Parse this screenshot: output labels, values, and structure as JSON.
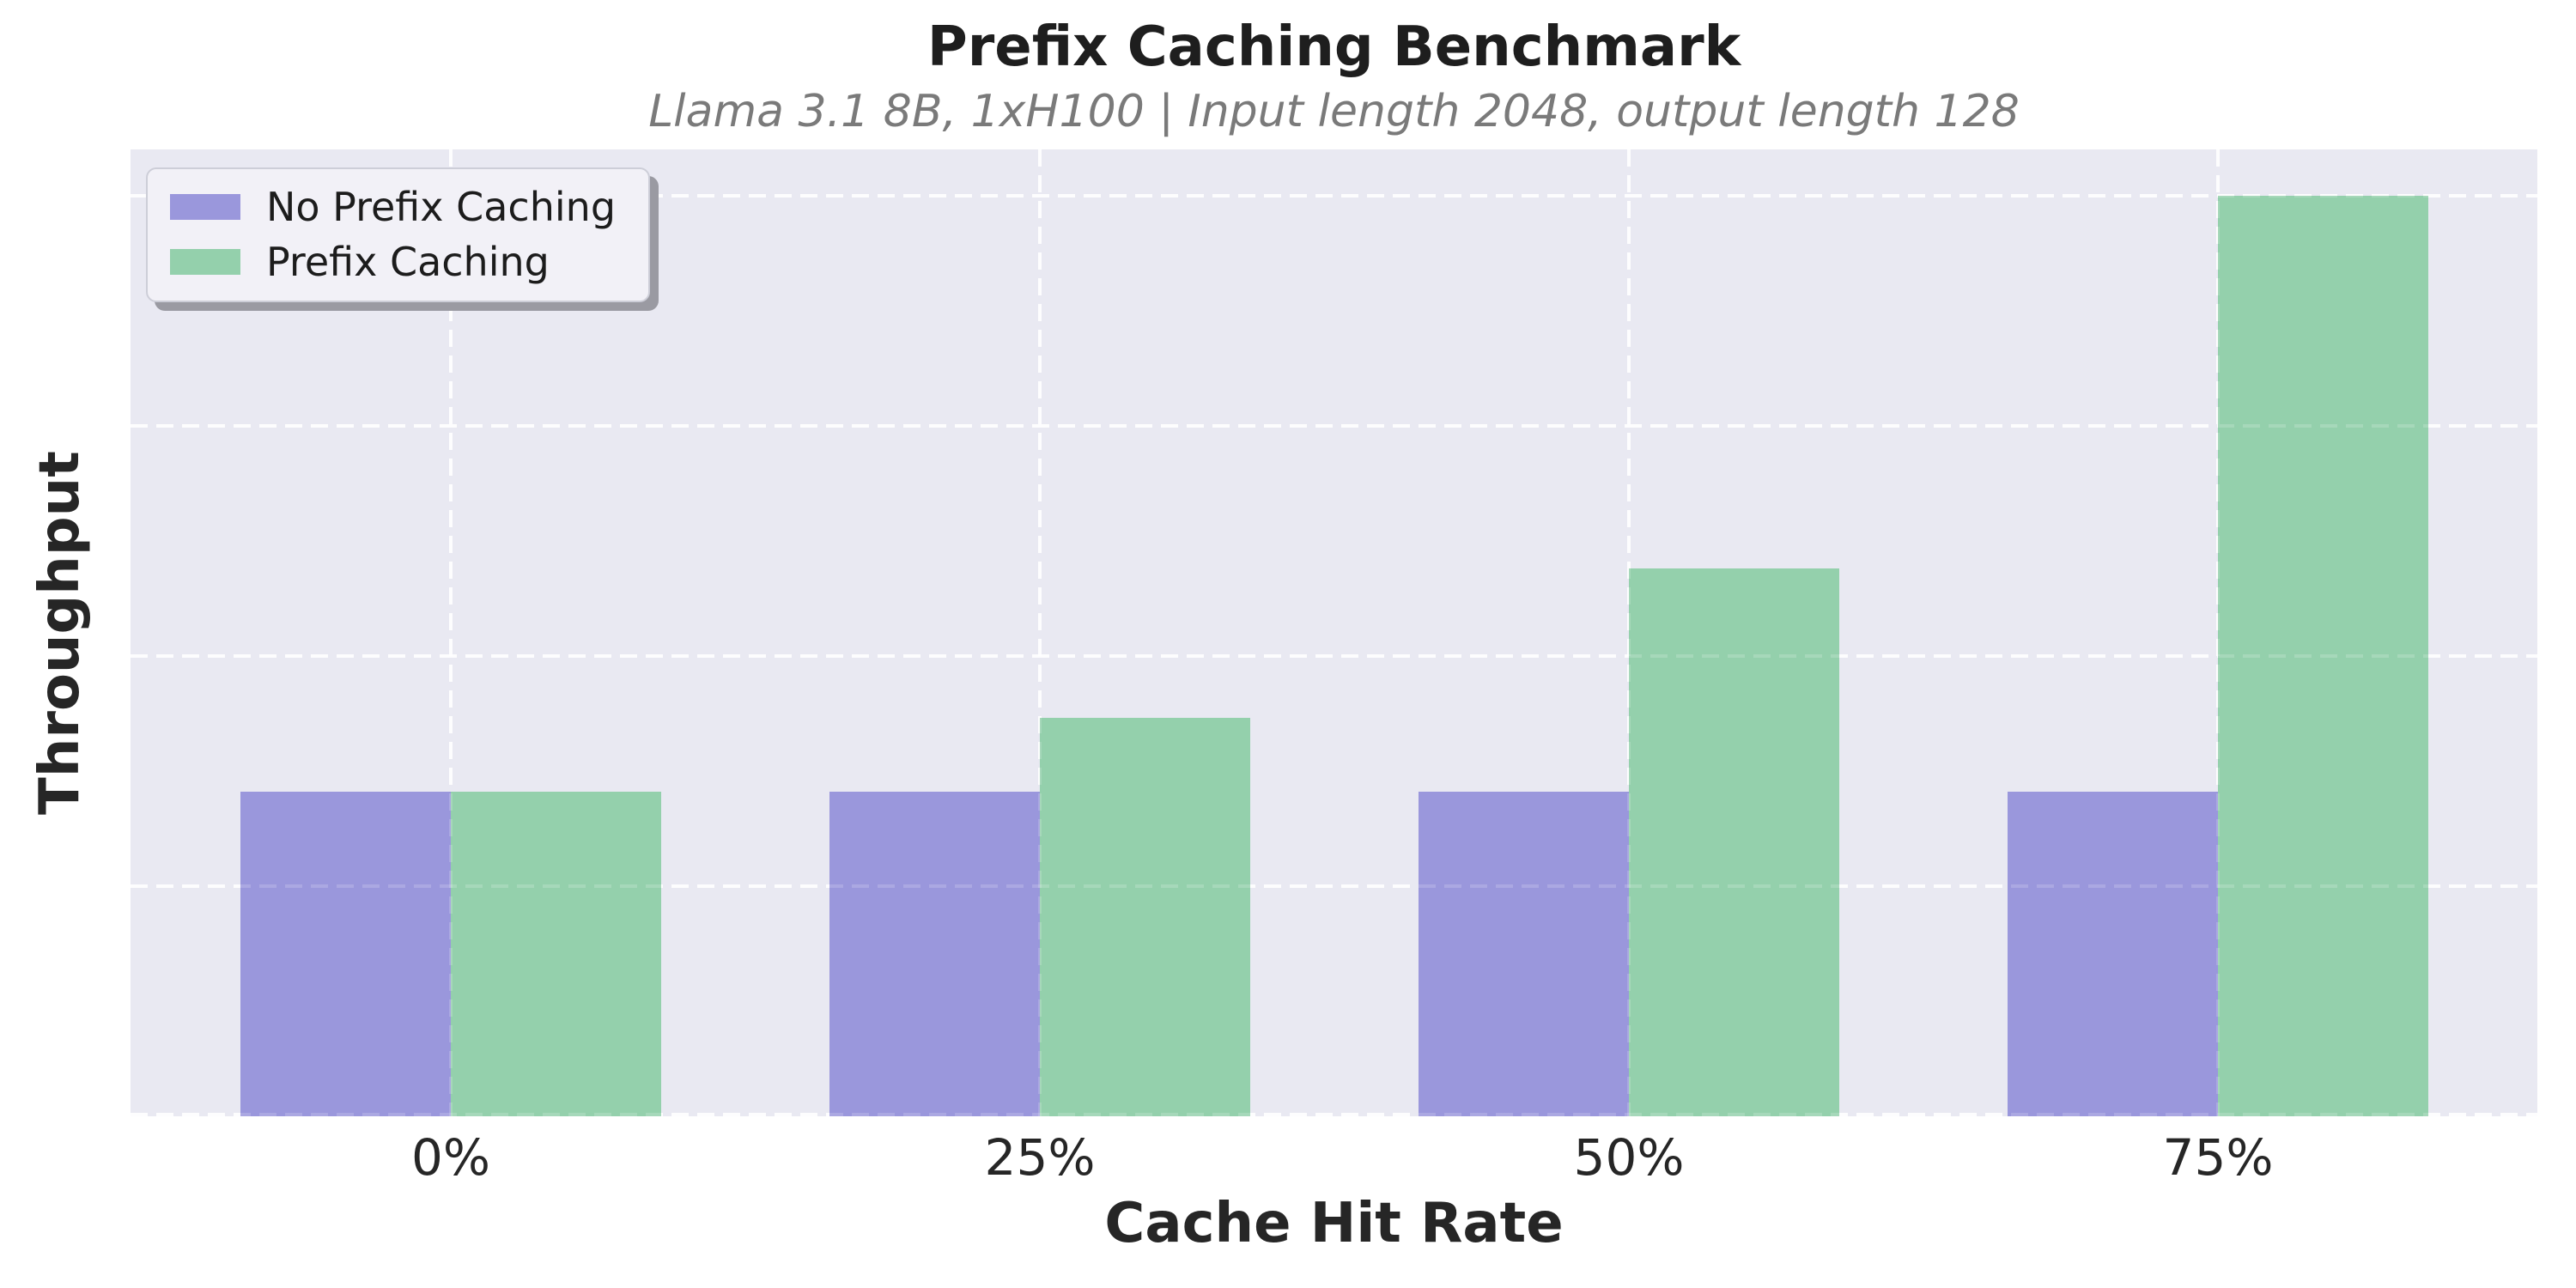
{
  "chart_data": {
    "type": "bar",
    "title": "Prefix Caching Benchmark",
    "subtitle": "Llama 3.1 8B, 1xH100 | Input length 2048, output length 128",
    "categories": [
      "0%",
      "25%",
      "50%",
      "75%"
    ],
    "series": [
      {
        "name": "No Prefix Caching",
        "color": "#9a97dc",
        "values": [
          1.41,
          1.41,
          1.41,
          1.41
        ]
      },
      {
        "name": "Prefix Caching",
        "color": "#94d0ac",
        "values": [
          1.41,
          1.73,
          2.38,
          4.0
        ]
      }
    ],
    "xlabel": "Cache Hit Rate",
    "ylabel": "Throughput",
    "ylim": [
      0,
      4.2
    ],
    "y_tick_labels_shown": false,
    "gridline_unit": 1,
    "grid": "white-dashed-both-axes",
    "legend_position": "upper-left"
  },
  "style": {
    "plot_background": "#e9e9f2",
    "page_background": "#ffffff",
    "grid_color": "#ffffff",
    "title_color": "#1e1e1e",
    "subtitle_color": "#7a7a7a",
    "tick_color": "#262626",
    "bar_purple": "#9a97dc",
    "bar_green": "#94d0ac",
    "legend_background": "#f2f1f7",
    "legend_border": "#cdced8",
    "legend_shadow": "#9a9aa2"
  }
}
